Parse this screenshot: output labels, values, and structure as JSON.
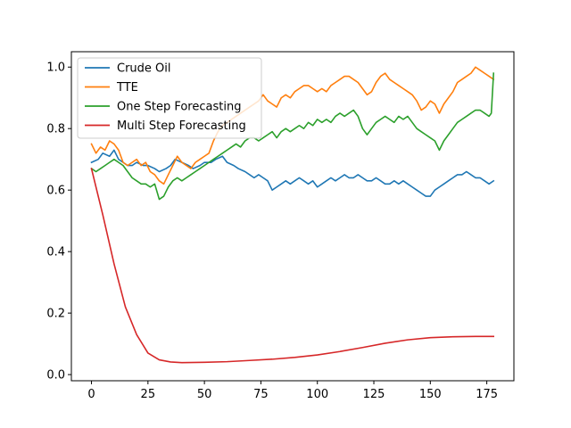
{
  "chart_data": {
    "type": "line",
    "title": "",
    "xlabel": "",
    "ylabel": "",
    "xlim": [
      -8.9,
      187.0
    ],
    "ylim": [
      -0.02,
      1.05
    ],
    "xticks": [
      0,
      25,
      50,
      75,
      100,
      125,
      150,
      175
    ],
    "xtick_labels": [
      "0",
      "25",
      "50",
      "75",
      "100",
      "125",
      "150",
      "175"
    ],
    "yticks": [
      0.0,
      0.2,
      0.4,
      0.6,
      0.8,
      1.0
    ],
    "ytick_labels": [
      "0.0",
      "0.2",
      "0.4",
      "0.6",
      "0.8",
      "1.0"
    ],
    "grid": false,
    "legend_position": "upper-left",
    "series": [
      {
        "name": "Crude Oil",
        "color": "#1f77b4",
        "points": [
          [
            0,
            0.69
          ],
          [
            3,
            0.7
          ],
          [
            5,
            0.72
          ],
          [
            8,
            0.71
          ],
          [
            10,
            0.73
          ],
          [
            12,
            0.7
          ],
          [
            14,
            0.69
          ],
          [
            16,
            0.68
          ],
          [
            18,
            0.68
          ],
          [
            20,
            0.69
          ],
          [
            23,
            0.68
          ],
          [
            25,
            0.68
          ],
          [
            28,
            0.67
          ],
          [
            30,
            0.66
          ],
          [
            33,
            0.67
          ],
          [
            35,
            0.68
          ],
          [
            37,
            0.7
          ],
          [
            40,
            0.69
          ],
          [
            43,
            0.68
          ],
          [
            45,
            0.67
          ],
          [
            48,
            0.68
          ],
          [
            50,
            0.69
          ],
          [
            53,
            0.69
          ],
          [
            55,
            0.7
          ],
          [
            58,
            0.71
          ],
          [
            60,
            0.69
          ],
          [
            63,
            0.68
          ],
          [
            65,
            0.67
          ],
          [
            68,
            0.66
          ],
          [
            70,
            0.65
          ],
          [
            72,
            0.64
          ],
          [
            74,
            0.65
          ],
          [
            76,
            0.64
          ],
          [
            78,
            0.63
          ],
          [
            80,
            0.6
          ],
          [
            82,
            0.61
          ],
          [
            84,
            0.62
          ],
          [
            86,
            0.63
          ],
          [
            88,
            0.62
          ],
          [
            90,
            0.63
          ],
          [
            92,
            0.64
          ],
          [
            94,
            0.63
          ],
          [
            96,
            0.62
          ],
          [
            98,
            0.63
          ],
          [
            100,
            0.61
          ],
          [
            102,
            0.62
          ],
          [
            104,
            0.63
          ],
          [
            106,
            0.64
          ],
          [
            108,
            0.63
          ],
          [
            110,
            0.64
          ],
          [
            112,
            0.65
          ],
          [
            114,
            0.64
          ],
          [
            116,
            0.64
          ],
          [
            118,
            0.65
          ],
          [
            120,
            0.64
          ],
          [
            122,
            0.63
          ],
          [
            124,
            0.63
          ],
          [
            126,
            0.64
          ],
          [
            128,
            0.63
          ],
          [
            130,
            0.62
          ],
          [
            132,
            0.62
          ],
          [
            134,
            0.63
          ],
          [
            136,
            0.62
          ],
          [
            138,
            0.63
          ],
          [
            140,
            0.62
          ],
          [
            142,
            0.61
          ],
          [
            144,
            0.6
          ],
          [
            146,
            0.59
          ],
          [
            148,
            0.58
          ],
          [
            150,
            0.58
          ],
          [
            152,
            0.6
          ],
          [
            154,
            0.61
          ],
          [
            156,
            0.62
          ],
          [
            158,
            0.63
          ],
          [
            160,
            0.64
          ],
          [
            162,
            0.65
          ],
          [
            164,
            0.65
          ],
          [
            166,
            0.66
          ],
          [
            168,
            0.65
          ],
          [
            170,
            0.64
          ],
          [
            172,
            0.64
          ],
          [
            174,
            0.63
          ],
          [
            176,
            0.62
          ],
          [
            178,
            0.63
          ]
        ]
      },
      {
        "name": "TTE",
        "color": "#ff7f0e",
        "points": [
          [
            0,
            0.75
          ],
          [
            2,
            0.72
          ],
          [
            4,
            0.74
          ],
          [
            6,
            0.73
          ],
          [
            8,
            0.76
          ],
          [
            10,
            0.75
          ],
          [
            12,
            0.73
          ],
          [
            14,
            0.69
          ],
          [
            16,
            0.68
          ],
          [
            18,
            0.69
          ],
          [
            20,
            0.7
          ],
          [
            22,
            0.68
          ],
          [
            24,
            0.69
          ],
          [
            26,
            0.66
          ],
          [
            28,
            0.65
          ],
          [
            30,
            0.63
          ],
          [
            32,
            0.62
          ],
          [
            34,
            0.65
          ],
          [
            36,
            0.68
          ],
          [
            38,
            0.71
          ],
          [
            40,
            0.69
          ],
          [
            42,
            0.68
          ],
          [
            44,
            0.67
          ],
          [
            46,
            0.69
          ],
          [
            48,
            0.7
          ],
          [
            50,
            0.71
          ],
          [
            52,
            0.72
          ],
          [
            54,
            0.76
          ],
          [
            56,
            0.79
          ],
          [
            58,
            0.81
          ],
          [
            60,
            0.82
          ],
          [
            62,
            0.83
          ],
          [
            64,
            0.84
          ],
          [
            66,
            0.85
          ],
          [
            68,
            0.86
          ],
          [
            70,
            0.87
          ],
          [
            72,
            0.88
          ],
          [
            74,
            0.89
          ],
          [
            76,
            0.91
          ],
          [
            78,
            0.89
          ],
          [
            80,
            0.88
          ],
          [
            82,
            0.87
          ],
          [
            84,
            0.9
          ],
          [
            86,
            0.91
          ],
          [
            88,
            0.9
          ],
          [
            90,
            0.92
          ],
          [
            92,
            0.93
          ],
          [
            94,
            0.94
          ],
          [
            96,
            0.94
          ],
          [
            98,
            0.93
          ],
          [
            100,
            0.92
          ],
          [
            102,
            0.93
          ],
          [
            104,
            0.92
          ],
          [
            106,
            0.94
          ],
          [
            108,
            0.95
          ],
          [
            110,
            0.96
          ],
          [
            112,
            0.97
          ],
          [
            114,
            0.97
          ],
          [
            116,
            0.96
          ],
          [
            118,
            0.95
          ],
          [
            120,
            0.93
          ],
          [
            122,
            0.91
          ],
          [
            124,
            0.92
          ],
          [
            126,
            0.95
          ],
          [
            128,
            0.97
          ],
          [
            130,
            0.98
          ],
          [
            132,
            0.96
          ],
          [
            134,
            0.95
          ],
          [
            136,
            0.94
          ],
          [
            138,
            0.93
          ],
          [
            140,
            0.92
          ],
          [
            142,
            0.91
          ],
          [
            144,
            0.89
          ],
          [
            146,
            0.86
          ],
          [
            148,
            0.87
          ],
          [
            150,
            0.89
          ],
          [
            152,
            0.88
          ],
          [
            154,
            0.85
          ],
          [
            156,
            0.88
          ],
          [
            158,
            0.9
          ],
          [
            160,
            0.92
          ],
          [
            162,
            0.95
          ],
          [
            164,
            0.96
          ],
          [
            166,
            0.97
          ],
          [
            168,
            0.98
          ],
          [
            170,
            1.0
          ],
          [
            172,
            0.99
          ],
          [
            174,
            0.98
          ],
          [
            176,
            0.97
          ],
          [
            178,
            0.96
          ]
        ]
      },
      {
        "name": "One Step Forecasting",
        "color": "#2ca02c",
        "points": [
          [
            0,
            0.67
          ],
          [
            2,
            0.66
          ],
          [
            4,
            0.67
          ],
          [
            6,
            0.68
          ],
          [
            8,
            0.69
          ],
          [
            10,
            0.7
          ],
          [
            12,
            0.69
          ],
          [
            14,
            0.68
          ],
          [
            16,
            0.66
          ],
          [
            18,
            0.64
          ],
          [
            20,
            0.63
          ],
          [
            22,
            0.62
          ],
          [
            24,
            0.62
          ],
          [
            26,
            0.61
          ],
          [
            28,
            0.62
          ],
          [
            30,
            0.57
          ],
          [
            32,
            0.58
          ],
          [
            34,
            0.61
          ],
          [
            36,
            0.63
          ],
          [
            38,
            0.64
          ],
          [
            40,
            0.63
          ],
          [
            42,
            0.64
          ],
          [
            44,
            0.65
          ],
          [
            46,
            0.66
          ],
          [
            48,
            0.67
          ],
          [
            50,
            0.68
          ],
          [
            52,
            0.69
          ],
          [
            54,
            0.7
          ],
          [
            56,
            0.71
          ],
          [
            58,
            0.72
          ],
          [
            60,
            0.73
          ],
          [
            62,
            0.74
          ],
          [
            64,
            0.75
          ],
          [
            66,
            0.74
          ],
          [
            68,
            0.76
          ],
          [
            70,
            0.77
          ],
          [
            72,
            0.77
          ],
          [
            74,
            0.76
          ],
          [
            76,
            0.77
          ],
          [
            78,
            0.78
          ],
          [
            80,
            0.79
          ],
          [
            82,
            0.77
          ],
          [
            84,
            0.79
          ],
          [
            86,
            0.8
          ],
          [
            88,
            0.79
          ],
          [
            90,
            0.8
          ],
          [
            92,
            0.81
          ],
          [
            94,
            0.8
          ],
          [
            96,
            0.82
          ],
          [
            98,
            0.81
          ],
          [
            100,
            0.83
          ],
          [
            102,
            0.82
          ],
          [
            104,
            0.83
          ],
          [
            106,
            0.82
          ],
          [
            108,
            0.84
          ],
          [
            110,
            0.85
          ],
          [
            112,
            0.84
          ],
          [
            114,
            0.85
          ],
          [
            116,
            0.86
          ],
          [
            118,
            0.84
          ],
          [
            120,
            0.8
          ],
          [
            122,
            0.78
          ],
          [
            124,
            0.8
          ],
          [
            126,
            0.82
          ],
          [
            128,
            0.83
          ],
          [
            130,
            0.84
          ],
          [
            132,
            0.83
          ],
          [
            134,
            0.82
          ],
          [
            136,
            0.84
          ],
          [
            138,
            0.83
          ],
          [
            140,
            0.84
          ],
          [
            142,
            0.82
          ],
          [
            144,
            0.8
          ],
          [
            146,
            0.79
          ],
          [
            148,
            0.78
          ],
          [
            150,
            0.77
          ],
          [
            152,
            0.76
          ],
          [
            154,
            0.73
          ],
          [
            156,
            0.76
          ],
          [
            158,
            0.78
          ],
          [
            160,
            0.8
          ],
          [
            162,
            0.82
          ],
          [
            164,
            0.83
          ],
          [
            166,
            0.84
          ],
          [
            168,
            0.85
          ],
          [
            170,
            0.86
          ],
          [
            172,
            0.86
          ],
          [
            174,
            0.85
          ],
          [
            176,
            0.84
          ],
          [
            177,
            0.85
          ],
          [
            178,
            0.98
          ]
        ]
      },
      {
        "name": "Multi Step Forecasting",
        "color": "#d62728",
        "points": [
          [
            0,
            0.67
          ],
          [
            5,
            0.52
          ],
          [
            10,
            0.36
          ],
          [
            15,
            0.22
          ],
          [
            20,
            0.13
          ],
          [
            25,
            0.07
          ],
          [
            30,
            0.048
          ],
          [
            35,
            0.041
          ],
          [
            40,
            0.039
          ],
          [
            50,
            0.04
          ],
          [
            60,
            0.042
          ],
          [
            70,
            0.046
          ],
          [
            80,
            0.05
          ],
          [
            90,
            0.056
          ],
          [
            100,
            0.064
          ],
          [
            110,
            0.075
          ],
          [
            120,
            0.088
          ],
          [
            130,
            0.102
          ],
          [
            140,
            0.113
          ],
          [
            150,
            0.12
          ],
          [
            160,
            0.123
          ],
          [
            170,
            0.124
          ],
          [
            178,
            0.124
          ]
        ]
      }
    ]
  }
}
